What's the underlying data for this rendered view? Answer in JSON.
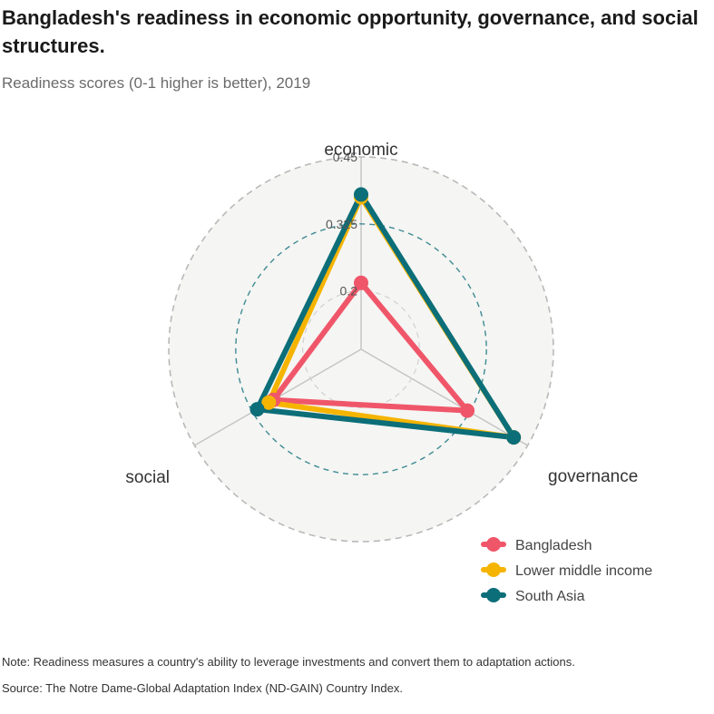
{
  "title": "Bangladesh's readiness in economic opportunity, governance, and social structures.",
  "subtitle": "Readiness scores (0-1 higher is better), 2019",
  "note": "Note: Readiness measures a country's ability to leverage investments and convert them to adaptation actions.",
  "source": "Source: The Notre Dame-Global Adaptation Index (ND-GAIN) Country Index.",
  "chart_data": {
    "type": "radar",
    "axes": [
      "economic",
      "governance",
      "social"
    ],
    "rlim": [
      0.125,
      0.45
    ],
    "ticks": [
      0.2,
      0.325,
      0.45
    ],
    "tick_labels": [
      "0.2",
      "0.325",
      "0.45"
    ],
    "reference_ring": 0.325,
    "legend_position": "bottom-right",
    "series": [
      {
        "name": "Bangladesh",
        "color": "#f0566a",
        "values": [
          0.215,
          0.32,
          0.28
        ]
      },
      {
        "name": "Lower middle income",
        "color": "#f5b400",
        "values": [
          0.375,
          0.42,
          0.29
        ]
      },
      {
        "name": "South Asia",
        "color": "#0b6e78",
        "values": [
          0.38,
          0.42,
          0.315
        ]
      }
    ]
  }
}
